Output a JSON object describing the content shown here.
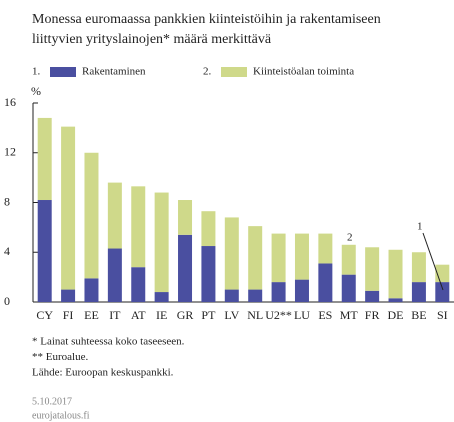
{
  "chart_data": {
    "type": "stacked_bar",
    "title": [
      "Monessa euromaassa pankkien kiinteistöihin ja rakentamiseen",
      "liittyvien yrityslainojen* määrä merkittävä"
    ],
    "y_unit": "%",
    "categories": [
      "CY",
      "FI",
      "EE",
      "IT",
      "AT",
      "IE",
      "GR",
      "PT",
      "LV",
      "NL",
      "U2**",
      "LU",
      "ES",
      "MT",
      "FR",
      "DE",
      "BE",
      "SI"
    ],
    "series": [
      {
        "number": "1.",
        "name": "Rakentaminen",
        "color": "#4a4fa0",
        "values": [
          8.2,
          1.0,
          1.9,
          4.3,
          2.8,
          0.8,
          5.4,
          4.5,
          1.0,
          1.0,
          1.6,
          1.8,
          3.1,
          2.2,
          0.9,
          0.3,
          1.6,
          1.6
        ]
      },
      {
        "number": "2.",
        "name": "Kiinteistöalan toiminta",
        "color": "#cfd98a",
        "values": [
          6.6,
          13.1,
          10.1,
          5.3,
          6.5,
          8.0,
          2.8,
          2.8,
          5.8,
          5.1,
          3.9,
          3.7,
          2.4,
          2.4,
          3.5,
          3.9,
          2.4,
          1.4
        ]
      }
    ],
    "ylim": [
      0,
      16
    ],
    "yticks": [
      0,
      4,
      8,
      12,
      16
    ],
    "grid": false,
    "annotations": [
      "1",
      "2"
    ],
    "footnotes": [
      "* Lainat suhteessa koko taseeseen.",
      "** Euroalue.",
      "Lähde: Euroopan keskuspankki."
    ],
    "date": "5.10.2017",
    "site": "eurojatalous.fi"
  }
}
